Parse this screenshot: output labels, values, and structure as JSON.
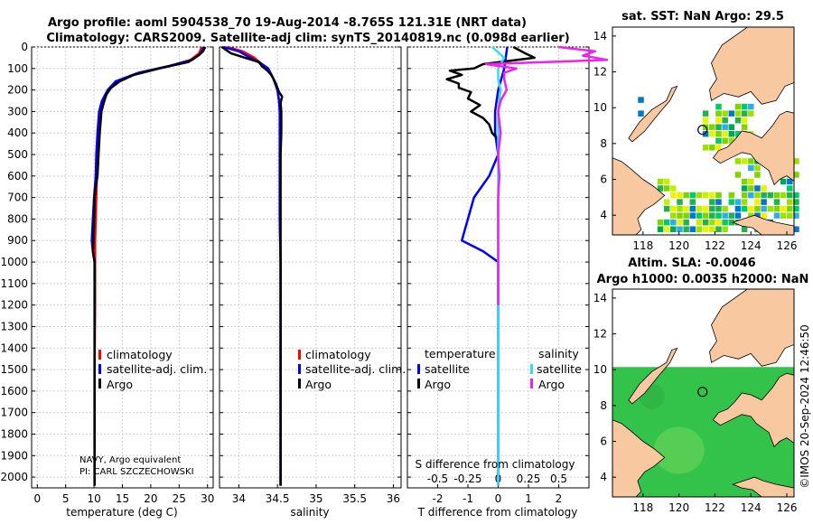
{
  "title_line1": "Argo profile: aoml 5904538_70 19-Aug-2014 -8.765S 121.31E (NRT data)",
  "title_line2": "Climatology: CARS2009. Satellite-adj clim: synTS_20140819.nc (0.098d earlier)",
  "colors": {
    "climatology": "#ff0000",
    "satellite": "#0000ff",
    "argo": "#000000",
    "sat_salinity": "#33ddee",
    "argo_salinity": "#ee22ee",
    "land": "#f8c9a0"
  },
  "chart_data": [
    {
      "type": "line",
      "name": "temperature-profile",
      "xlabel": "temperature (deg C)",
      "xlim": [
        -1,
        31
      ],
      "ylim": [
        2050,
        0
      ],
      "xticks": [
        0,
        5,
        10,
        15,
        20,
        25,
        30
      ],
      "yticks": [
        0,
        100,
        200,
        300,
        400,
        500,
        600,
        700,
        800,
        900,
        1000,
        1100,
        1200,
        1300,
        1400,
        1500,
        1600,
        1700,
        1800,
        1900,
        2000
      ],
      "legend": [
        "climatology",
        "satellite-adj. clim.",
        "Argo"
      ],
      "annotations": [
        "NAVY, Argo equivalent",
        "PI: CARL SZCZECHOWSKI"
      ],
      "series": [
        {
          "name": "climatology",
          "depth": [
            0,
            30,
            60,
            90,
            120,
            160,
            200,
            250,
            300,
            400,
            500,
            600,
            700,
            800,
            900,
            950,
            1000,
            1200,
            1500,
            2000,
            2040
          ],
          "values": [
            29,
            28.5,
            27,
            23,
            18,
            14,
            12.5,
            11.5,
            11,
            10.8,
            10.6,
            10.5,
            10.4,
            10.3,
            10.2,
            10.2,
            10.2,
            10.2,
            10.1,
            10.1,
            10.1
          ]
        },
        {
          "name": "satellite-adj. clim.",
          "depth": [
            0,
            30,
            60,
            90,
            120,
            160,
            200,
            250,
            300,
            400,
            500,
            600,
            700,
            800,
            900,
            950,
            1000,
            1200,
            1500,
            2000,
            2040
          ],
          "values": [
            29.3,
            28.8,
            27.3,
            23,
            17.8,
            13.8,
            12.4,
            11.4,
            10.9,
            10.6,
            10.4,
            10.3,
            10,
            9.8,
            9.6,
            9.8,
            10.1,
            10.1,
            10.1,
            10.1,
            10.1
          ]
        },
        {
          "name": "Argo",
          "depth": [
            0,
            20,
            40,
            70,
            100,
            130,
            160,
            190,
            220,
            260,
            300,
            400,
            500,
            600,
            650,
            700,
            800,
            900,
            950,
            1000,
            1200,
            1500,
            2000,
            2040
          ],
          "values": [
            29.6,
            29.2,
            28.4,
            26.6,
            21.5,
            17,
            14.5,
            13,
            12.2,
            11.7,
            11.3,
            11,
            10.8,
            10.6,
            10.3,
            10.1,
            10,
            9.9,
            9.8,
            10.1,
            10.1,
            10.1,
            10.1,
            10.1
          ]
        }
      ]
    },
    {
      "type": "line",
      "name": "salinity-profile",
      "xlabel": "salinity",
      "xlim": [
        33.75,
        36.1
      ],
      "ylim": [
        2050,
        0
      ],
      "xticks": [
        34,
        34.5,
        35,
        35.5,
        36
      ],
      "xticklabels": [
        "34",
        "34.5",
        "35",
        "35.5",
        "36"
      ],
      "legend": [
        "climatology",
        "satellite-adj. clim.",
        "Argo"
      ],
      "series": [
        {
          "name": "climatology",
          "depth": [
            0,
            20,
            50,
            80,
            100,
            150,
            200,
            250,
            300,
            500,
            800,
            1000,
            1500,
            2000,
            2040
          ],
          "values": [
            33.85,
            34.05,
            34.2,
            34.3,
            34.38,
            34.45,
            34.5,
            34.52,
            34.53,
            34.53,
            34.53,
            34.54,
            34.54,
            34.54,
            34.54
          ]
        },
        {
          "name": "satellite-adj. clim.",
          "depth": [
            0,
            20,
            50,
            80,
            100,
            150,
            200,
            250,
            300,
            500,
            800,
            1000,
            1500,
            2000,
            2040
          ],
          "values": [
            33.8,
            34,
            34.15,
            34.3,
            34.38,
            34.45,
            34.5,
            34.52,
            34.53,
            34.53,
            34.53,
            34.54,
            34.54,
            34.54,
            34.54
          ]
        },
        {
          "name": "Argo",
          "depth": [
            0,
            15,
            30,
            50,
            70,
            90,
            110,
            130,
            150,
            170,
            190,
            210,
            230,
            260,
            300,
            400,
            500,
            800,
            1000,
            1500,
            2000,
            2040
          ],
          "values": [
            33.78,
            33.84,
            33.9,
            34.08,
            34.26,
            34.3,
            34.37,
            34.42,
            34.45,
            34.48,
            34.5,
            34.52,
            34.56,
            34.54,
            34.55,
            34.55,
            34.54,
            34.54,
            34.54,
            34.54,
            34.54,
            34.54
          ]
        }
      ]
    },
    {
      "type": "line",
      "name": "difference-profile",
      "xlabel": "T difference from climatology",
      "xlabel_top": "S difference from climatology",
      "xlim": [
        -3,
        3
      ],
      "ylim": [
        2050,
        0
      ],
      "xticks": [
        -2,
        -1,
        0,
        1,
        2
      ],
      "xticklabels": [
        "-2",
        "-1",
        "0",
        "1",
        "2"
      ],
      "s_ticklabels": [
        "-0.5",
        "-0.25",
        "0",
        "0.25",
        "0.5"
      ],
      "legend_headers": [
        "temperature",
        "salinity"
      ],
      "legend": [
        "satellite",
        "Argo",
        "satellite",
        "Argo"
      ],
      "series": [
        {
          "name": "T satellite",
          "depth": [
            0,
            100,
            200,
            300,
            400,
            500,
            600,
            700,
            800,
            850,
            900,
            950,
            1000,
            1200,
            1500,
            2000,
            2040
          ],
          "values": [
            0.3,
            0.2,
            0,
            -0.1,
            -0.1,
            0,
            -0.3,
            -0.8,
            -1,
            -1.1,
            -1.2,
            -0.5,
            0,
            0,
            0,
            0,
            0
          ]
        },
        {
          "name": "T Argo",
          "depth": [
            0,
            30,
            50,
            80,
            100,
            110,
            130,
            150,
            170,
            190,
            210,
            240,
            270,
            300,
            330,
            360,
            400,
            430
          ],
          "values": [
            0.5,
            0.9,
            1.2,
            -0.5,
            -0.8,
            -1.6,
            -1.2,
            -1.7,
            -1.3,
            -1.3,
            -0.9,
            -1,
            -0.6,
            -0.9,
            -0.5,
            -0.3,
            -0.2,
            0
          ]
        },
        {
          "name": "S satellite",
          "depth": [
            0,
            50,
            100,
            150,
            200,
            300,
            500,
            800,
            1200,
            1500,
            2000,
            2040
          ],
          "values": [
            -0.05,
            0.05,
            0,
            0,
            0.02,
            0,
            0,
            0,
            0,
            0,
            0,
            0
          ]
        },
        {
          "name": "S Argo",
          "depth": [
            0,
            20,
            40,
            60,
            80,
            100,
            120,
            150,
            200,
            250,
            300,
            400,
            500,
            600,
            700,
            800,
            900,
            1000,
            1200
          ],
          "values": [
            0.5,
            0.8,
            0.7,
            0.9,
            -0.1,
            0.15,
            0.05,
            0.05,
            0.07,
            0.02,
            0,
            0.02,
            0,
            0.01,
            0,
            0,
            0,
            0,
            0
          ]
        }
      ]
    },
    {
      "type": "heatmap",
      "name": "sst-map",
      "title": "sat. SST: NaN Argo: 29.5",
      "xlim": [
        116.3,
        126.4
      ],
      "ylim": [
        2.9,
        14.5
      ],
      "xticks": [
        118,
        120,
        122,
        124,
        126
      ],
      "yticks": [
        4,
        6,
        8,
        10,
        12,
        14
      ],
      "argo_position": [
        121.31,
        8.765
      ]
    },
    {
      "type": "heatmap",
      "name": "sla-map",
      "title_line1": "Altim. SLA: -0.0046",
      "title_line2": "Argo h1000: 0.0035 h2000: NaN",
      "xlim": [
        116.3,
        126.4
      ],
      "ylim": [
        2.9,
        14.5
      ],
      "xticks": [
        118,
        120,
        122,
        124,
        126
      ],
      "yticks": [
        4,
        6,
        8,
        10,
        12,
        14
      ],
      "argo_position": [
        121.31,
        8.765
      ]
    }
  ],
  "copyright": "©IMOS 20-Sep-2024 12:46:50"
}
